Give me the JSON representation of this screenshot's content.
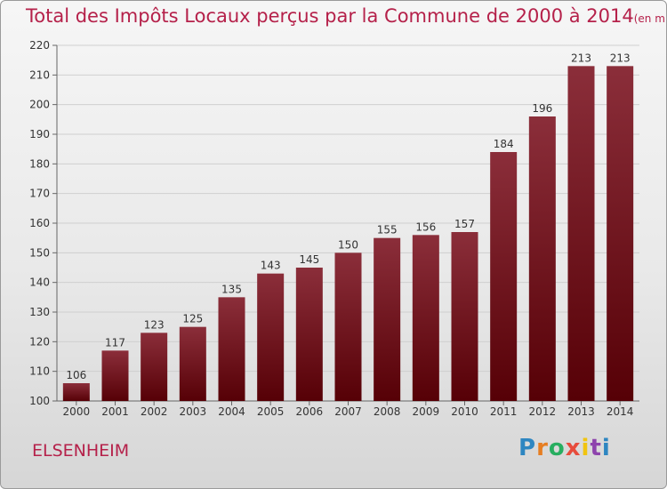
{
  "header": {
    "title": "Total des Impôts Locaux perçus par la Commune de 2000 à 2014",
    "unit": "(en milliers d'€)"
  },
  "footer": {
    "commune": "ELSENHEIM",
    "logo": "Proxiti"
  },
  "colors": {
    "bar_top": "#8b2e3a",
    "bar_bottom": "#560006",
    "title": "#b5214a"
  },
  "chart_data": {
    "type": "bar",
    "title": "Total des Impôts Locaux perçus par la Commune de 2000 à 2014",
    "xlabel": "",
    "ylabel": "",
    "categories": [
      "2000",
      "2001",
      "2002",
      "2003",
      "2004",
      "2005",
      "2006",
      "2007",
      "2008",
      "2009",
      "2010",
      "2011",
      "2012",
      "2013",
      "2014"
    ],
    "values": [
      106,
      117,
      123,
      125,
      135,
      143,
      145,
      150,
      155,
      156,
      157,
      184,
      196,
      213,
      213
    ],
    "ylim": [
      100,
      220
    ],
    "yticks": [
      100,
      110,
      120,
      130,
      140,
      150,
      160,
      170,
      180,
      190,
      200,
      210,
      220
    ],
    "grid": true
  }
}
